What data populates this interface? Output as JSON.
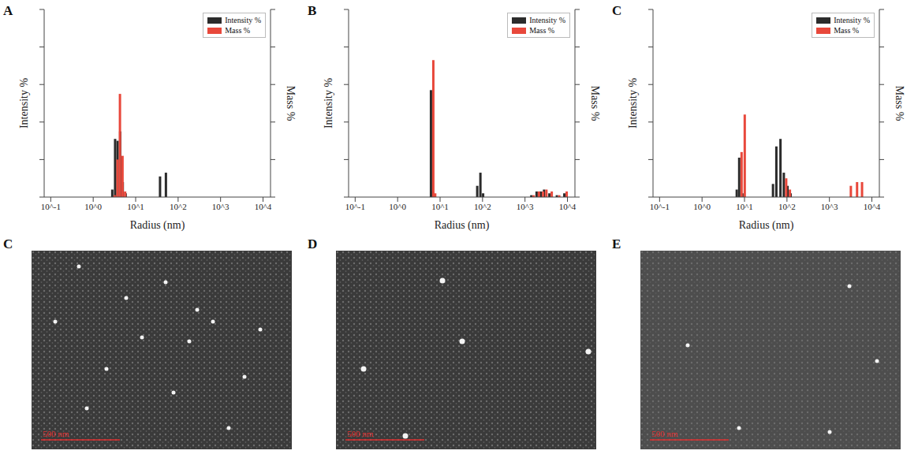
{
  "chart_data": [
    {
      "panel": "A",
      "type": "bar",
      "x_label": "Radius (nm)",
      "y_label": "Intensity %",
      "y2_label": "Mass %",
      "log": "x",
      "xlim": [
        0.07,
        15000
      ],
      "xticks": [
        {
          "value": 0.1,
          "label": "10^-1"
        },
        {
          "value": 1,
          "label": "10^0"
        },
        {
          "value": 10,
          "label": "10^1"
        },
        {
          "value": 100,
          "label": "10^2"
        },
        {
          "value": 1000,
          "label": "10^3"
        },
        {
          "value": 10000,
          "label": "10^4"
        }
      ],
      "ylim": [
        0,
        100
      ],
      "yticks": [
        0,
        20,
        40,
        60,
        80,
        100
      ],
      "y2lim": [
        0,
        100
      ],
      "y2ticks": [
        0,
        20,
        40,
        60,
        80,
        100
      ],
      "tick_labels": "x",
      "legend": "upper right",
      "x": [
        3.0,
        3.5,
        4.0,
        4.6,
        5.3,
        6.2,
        40,
        55
      ],
      "series": [
        {
          "name": "Intensity %",
          "color": "#2b2b2b",
          "values": [
            4,
            31,
            30,
            35,
            8,
            2,
            11,
            13
          ]
        },
        {
          "name": "Mass %",
          "color": "#e8483b",
          "axis": "y2",
          "values": [
            1,
            20,
            55,
            22,
            3,
            null,
            null,
            null
          ]
        }
      ]
    },
    {
      "panel": "B",
      "type": "bar",
      "x_label": "Radius (nm)",
      "y_label": "Intensity %",
      "y2_label": "Mass %",
      "log": "x",
      "xlim": [
        0.07,
        15000
      ],
      "xticks": [
        {
          "value": 0.1,
          "label": "10^-1"
        },
        {
          "value": 1,
          "label": "10^0"
        },
        {
          "value": 10,
          "label": "10^1"
        },
        {
          "value": 100,
          "label": "10^2"
        },
        {
          "value": 1000,
          "label": "10^3"
        },
        {
          "value": 10000,
          "label": "10^4"
        }
      ],
      "ylim": [
        0,
        100
      ],
      "yticks": [
        0,
        20,
        40,
        60,
        80,
        100
      ],
      "y2lim": [
        0,
        100
      ],
      "y2ticks": [
        0,
        20,
        40,
        60,
        80,
        100
      ],
      "tick_labels": "x",
      "legend": "upper right",
      "x": [
        6.5,
        7.2,
        7.8,
        80,
        95,
        110,
        1500,
        2000,
        2500,
        3000,
        4000,
        6000,
        9000
      ],
      "series": [
        {
          "name": "Intensity %",
          "color": "#2b2b2b",
          "values": [
            57,
            3,
            1,
            6,
            13,
            2,
            1,
            3,
            3,
            4,
            2,
            1,
            2
          ]
        },
        {
          "name": "Mass %",
          "color": "#e8483b",
          "axis": "y2",
          "values": [
            73,
            2,
            null,
            null,
            null,
            null,
            1,
            3,
            3,
            4,
            3,
            1,
            3
          ]
        }
      ]
    },
    {
      "panel": "C",
      "type": "bar",
      "x_label": "Radius (nm)",
      "y_label": "Intensity %",
      "y2_label": "Mass %",
      "log": "x",
      "xlim": [
        0.07,
        15000
      ],
      "xticks": [
        {
          "value": 0.1,
          "label": "10^-1"
        },
        {
          "value": 1,
          "label": "10^0"
        },
        {
          "value": 10,
          "label": "10^1"
        },
        {
          "value": 100,
          "label": "10^2"
        },
        {
          "value": 1000,
          "label": "10^3"
        },
        {
          "value": 10000,
          "label": "10^4"
        }
      ],
      "ylim": [
        0,
        100
      ],
      "yticks": [
        0,
        20,
        40,
        60,
        80,
        100
      ],
      "y2lim": [
        0,
        100
      ],
      "y2ticks": [
        0,
        20,
        40,
        60,
        80,
        100
      ],
      "tick_labels": "x",
      "legend": "upper right",
      "x": [
        7.0,
        8.0,
        9.5,
        50,
        60,
        75,
        90,
        110,
        130,
        3000,
        4200,
        5500
      ],
      "series": [
        {
          "name": "Intensity %",
          "color": "#2b2b2b",
          "values": [
            4,
            21,
            2,
            7,
            27,
            31,
            13,
            6,
            2,
            null,
            null,
            null
          ]
        },
        {
          "name": "Mass %",
          "color": "#e8483b",
          "axis": "y2",
          "values": [
            null,
            24,
            44,
            null,
            null,
            null,
            10,
            4,
            null,
            6,
            8,
            8
          ]
        }
      ]
    }
  ],
  "images": [
    {
      "panel": "C",
      "scale_bar": "500 nm"
    },
    {
      "panel": "D",
      "scale_bar": "500 nm"
    },
    {
      "panel": "E",
      "scale_bar": "500 nm"
    }
  ]
}
